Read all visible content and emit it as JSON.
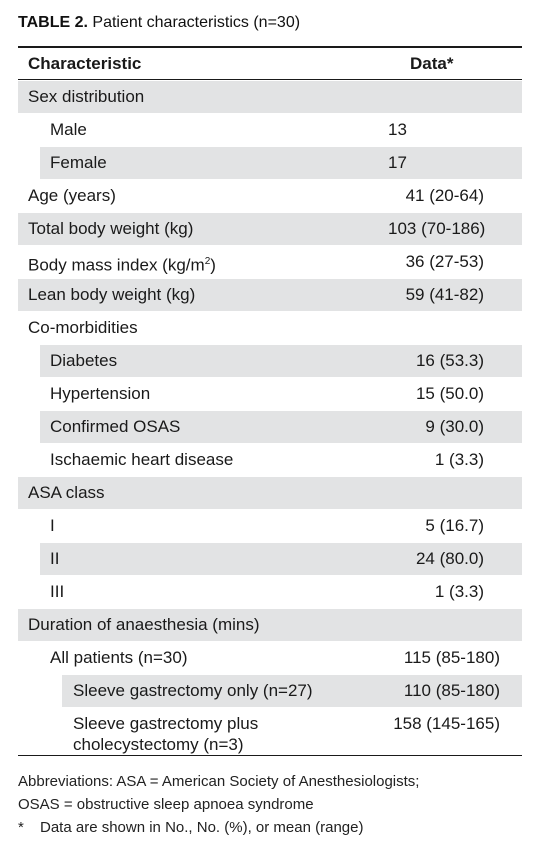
{
  "title": {
    "label": "TABLE 2.",
    "text": "Patient characteristics (n=30)"
  },
  "header": {
    "col1": "Characteristic",
    "col2": "Data*"
  },
  "rows": [
    {
      "c1": "Sex distribution",
      "c2": ""
    },
    {
      "c1": "Male",
      "c2": "13"
    },
    {
      "c1": "Female",
      "c2": "17"
    },
    {
      "c1": "Age (years)",
      "c2": "41 (20-64)"
    },
    {
      "c1": "Total body weight (kg)",
      "c2": "103 (70-186)"
    },
    {
      "c1": "Body mass index (kg/m",
      "sup": "2",
      "c1_end": ")",
      "c2": "36 (27-53)"
    },
    {
      "c1": "Lean body weight (kg)",
      "c2": "59 (41-82)"
    },
    {
      "c1": "Co-morbidities",
      "c2": ""
    },
    {
      "c1": "Diabetes",
      "c2": "16 (53.3)"
    },
    {
      "c1": "Hypertension",
      "c2": "15 (50.0)"
    },
    {
      "c1": "Confirmed OSAS",
      "c2": "9 (30.0)"
    },
    {
      "c1": "Ischaemic heart disease",
      "c2": "1 (3.3)"
    },
    {
      "c1": "ASA class",
      "c2": ""
    },
    {
      "c1": "I",
      "c2": "5 (16.7)"
    },
    {
      "c1": "II",
      "c2": "24 (80.0)"
    },
    {
      "c1": "III",
      "c2": "1 (3.3)"
    },
    {
      "c1": "Duration of anaesthesia (mins)",
      "c2": ""
    },
    {
      "c1": "All patients (n=30)",
      "c2": "115 (85-180)"
    },
    {
      "c1": "Sleeve gastrectomy only (n=27)",
      "c2": "110 (85-180)"
    },
    {
      "c1a": "Sleeve gastrectomy plus",
      "c1b": "cholecystectomy (n=3)",
      "c2": "158 (145-165)"
    }
  ],
  "footnotes": {
    "abbrev1": "Abbreviations: ASA = American Society of Anesthesiologists;",
    "abbrev2": "OSAS = obstructive sleep apnoea syndrome",
    "star": "*",
    "note": "Data are shown in No., No. (%), or mean (range)"
  }
}
